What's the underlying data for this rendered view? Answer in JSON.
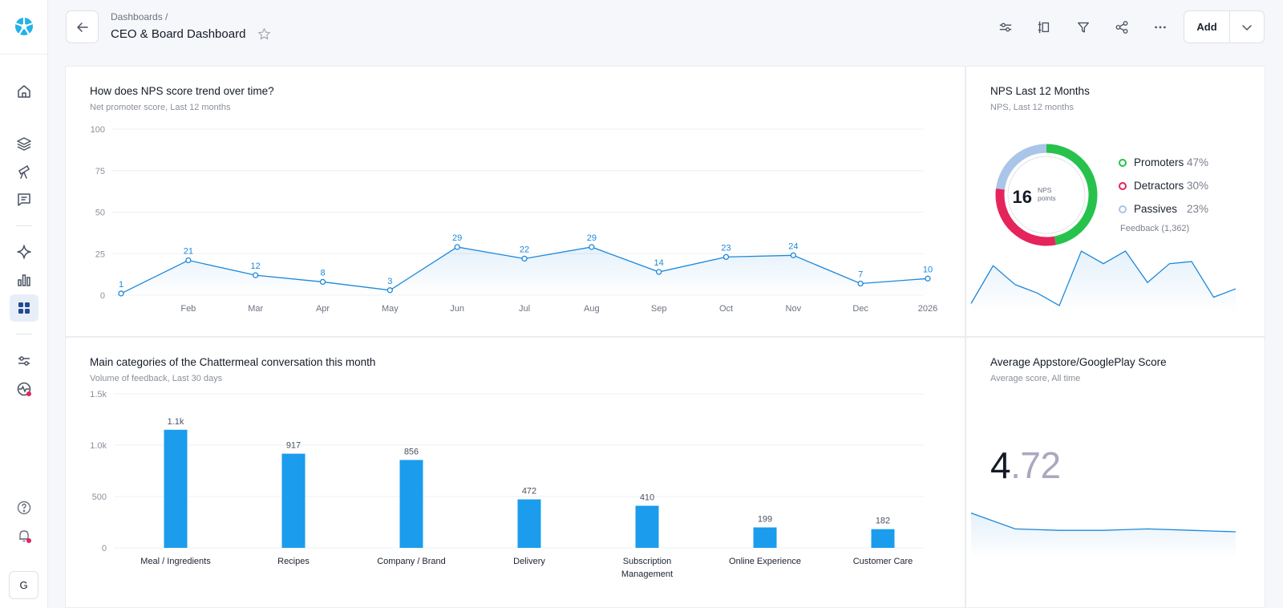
{
  "breadcrumb": "Dashboards  /",
  "page_title": "CEO & Board Dashboard",
  "toolbar": {
    "add_label": "Add"
  },
  "user_initial": "G",
  "colors": {
    "line": "#1e88d9",
    "bar": "#1b9cec",
    "promoters": "#27c24c",
    "detractors": "#e5245c",
    "passives": "#a9c5e8"
  },
  "nps_trend": {
    "title": "How does NPS score trend over time?",
    "subtitle": "Net promoter score, Last 12 months"
  },
  "nps_donut": {
    "title": "NPS Last 12 Months",
    "subtitle": "NPS, Last 12 months",
    "score": "16",
    "score_unit_line1": "NPS",
    "score_unit_line2": "points",
    "legend": [
      {
        "label": "Promoters",
        "pct": "47%"
      },
      {
        "label": "Detractors",
        "pct": "30%"
      },
      {
        "label": "Passives",
        "pct": "23%"
      }
    ],
    "feedback": "Feedback (1,362)"
  },
  "categories": {
    "title": "Main categories of the Chattermeal conversation this month",
    "subtitle": "Volume of feedback, Last 30 days"
  },
  "appstore": {
    "title": "Average Appstore/GooglePlay Score",
    "subtitle": "Average score, All time",
    "score_int": "4",
    "score_dec": ".72"
  },
  "chart_data": [
    {
      "type": "line",
      "title": "How does NPS score trend over time?",
      "subtitle": "Net promoter score, Last 12 months",
      "x": [
        "",
        "Feb",
        "Mar",
        "Apr",
        "May",
        "Jun",
        "Jul",
        "Aug",
        "Sep",
        "Oct",
        "Nov",
        "Dec",
        "2026"
      ],
      "values": [
        1,
        21,
        12,
        8,
        3,
        29,
        22,
        29,
        14,
        23,
        24,
        7,
        10
      ],
      "yticks": [
        "0",
        "25",
        "50",
        "75",
        "100"
      ],
      "ylim": [
        0,
        100
      ],
      "grid": true
    },
    {
      "type": "pie",
      "title": "NPS Last 12 Months",
      "categories": [
        "Promoters",
        "Detractors",
        "Passives"
      ],
      "values": [
        47,
        30,
        23
      ]
    },
    {
      "type": "line",
      "values": [
        3,
        21,
        12,
        8,
        2,
        28,
        22,
        28,
        13,
        22,
        23,
        6,
        10
      ]
    },
    {
      "type": "bar",
      "title": "Main categories of the Chattermeal conversation this month",
      "subtitle": "Volume of feedback, Last 30 days",
      "categories": [
        "Meal / Ingredients",
        "Recipes",
        "Company / Brand",
        "Delivery",
        "Subscription Management",
        "Online Experience",
        "Customer Care"
      ],
      "values": [
        1150,
        917,
        856,
        472,
        410,
        199,
        182
      ],
      "data_labels": [
        "1.1k",
        "917",
        "856",
        "472",
        "410",
        "199",
        "182"
      ],
      "yticks": [
        "0",
        "500",
        "1.0k",
        "1.5k"
      ],
      "ylim": [
        0,
        1500
      ],
      "grid": true
    },
    {
      "type": "line",
      "values": [
        4.85,
        4.74,
        4.73,
        4.73,
        4.74,
        4.73,
        4.72
      ]
    }
  ]
}
